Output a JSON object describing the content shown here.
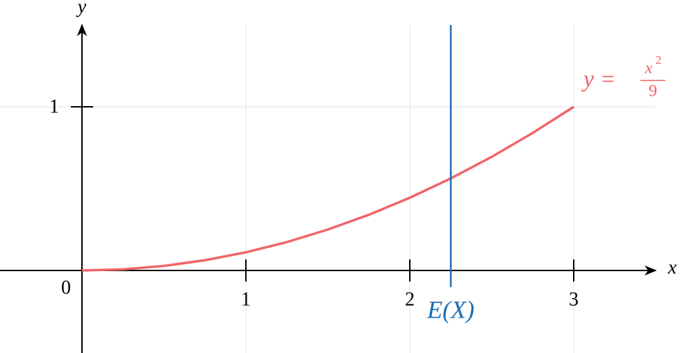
{
  "chart_data": {
    "type": "line",
    "x": [
      0,
      0.25,
      0.5,
      0.75,
      1,
      1.25,
      1.5,
      1.75,
      2,
      2.25,
      2.5,
      2.75,
      3
    ],
    "values": [
      0,
      0.0069,
      0.0278,
      0.0625,
      0.1111,
      0.1736,
      0.25,
      0.3403,
      0.4444,
      0.5625,
      0.6944,
      0.8403,
      1
    ],
    "color": "#f06466",
    "xlabel": "x",
    "ylabel": "y",
    "origin_label": "0",
    "xlim": [
      -0.5,
      3.5
    ],
    "ylim": [
      -0.5,
      1.5
    ],
    "xticks": [
      1,
      2,
      3
    ],
    "yticks": [
      1
    ],
    "grid": true,
    "curve_label": {
      "lhs": "y =",
      "numerator": "x",
      "exponent": "2",
      "denominator": "9"
    },
    "vline": {
      "x": 2.25,
      "label": "E(X)",
      "color": "#1a6db5"
    }
  }
}
